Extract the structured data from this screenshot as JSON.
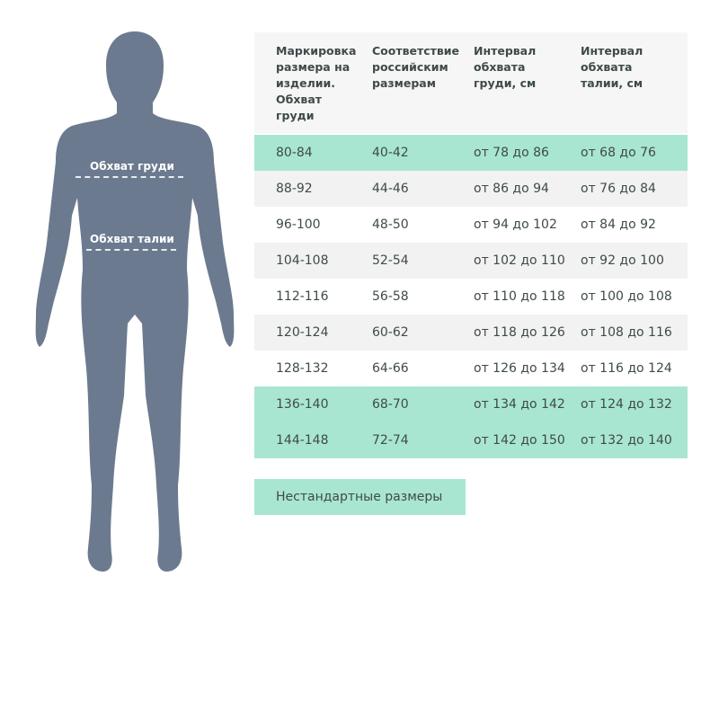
{
  "figure": {
    "chest_label": "Обхват груди",
    "waist_label": "Обхват талии",
    "silhouette_color": "#6b7a8f"
  },
  "table": {
    "headers": [
      "Маркировка размера на изделии. Обхват груди",
      "Соответствие российским размерам",
      "Интервал обхвата груди, см",
      "Интервал обхвата талии, см"
    ],
    "rows": [
      {
        "cells": [
          "80-84",
          "40-42",
          "от 78 до 86",
          "от 68 до 76"
        ],
        "highlight": "teal"
      },
      {
        "cells": [
          "88-92",
          "44-46",
          "от 86 до 94",
          "от 76 до 84"
        ],
        "highlight": "gray"
      },
      {
        "cells": [
          "96-100",
          "48-50",
          "от 94 до 102",
          "от 84 до 92"
        ],
        "highlight": "none"
      },
      {
        "cells": [
          "104-108",
          "52-54",
          "от 102 до 110",
          "от 92 до 100"
        ],
        "highlight": "gray"
      },
      {
        "cells": [
          "112-116",
          "56-58",
          "от 110 до 118",
          "от 100 до 108"
        ],
        "highlight": "none"
      },
      {
        "cells": [
          "120-124",
          "60-62",
          "от 118 до 126",
          "от 108 до 116"
        ],
        "highlight": "gray"
      },
      {
        "cells": [
          "128-132",
          "64-66",
          "от 126 до 134",
          "от 116 до 124"
        ],
        "highlight": "none"
      },
      {
        "cells": [
          "136-140",
          "68-70",
          "от 134 до 142",
          "от 124 до 132"
        ],
        "highlight": "teal"
      },
      {
        "cells": [
          "144-148",
          "72-74",
          "от 142 до 150",
          "от 132 до 140"
        ],
        "highlight": "teal"
      }
    ],
    "colors": {
      "teal": "#a8e6d2",
      "gray": "#f2f2f2",
      "none": "#ffffff",
      "header": "#f6f6f6"
    }
  },
  "extra_button": {
    "label": "Нестандартные размеры"
  }
}
